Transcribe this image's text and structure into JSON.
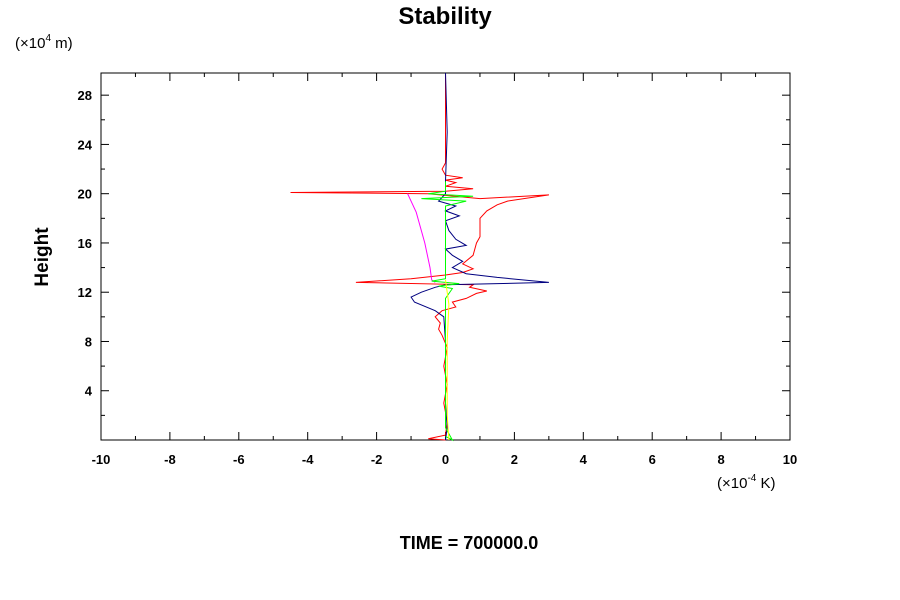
{
  "chart_data": {
    "type": "line",
    "title": "Stability",
    "xlabel": "",
    "ylabel": "Height",
    "x_unit": {
      "prefix": "(×10",
      "exp": "-4",
      "suffix": " K)"
    },
    "y_unit": {
      "prefix": "(×10",
      "exp": "4",
      "suffix": " m)"
    },
    "xlim": [
      -10,
      10
    ],
    "ylim": [
      0,
      29.8
    ],
    "x_ticks": [
      -10,
      -8,
      -6,
      -4,
      -2,
      0,
      2,
      4,
      6,
      8,
      10
    ],
    "x_tick_labels": [
      "-10",
      "-8",
      "-6",
      "-4",
      "-2",
      "0",
      "2",
      "4",
      "6",
      "8",
      "10"
    ],
    "y_ticks": [
      4,
      8,
      12,
      16,
      20,
      24,
      28
    ],
    "y_tick_labels": [
      "4",
      "8",
      "12",
      "16",
      "20",
      "24",
      "28"
    ],
    "grid": false,
    "footer": "TIME = 700000.0",
    "series": [
      {
        "color": "#ff0000",
        "points": [
          [
            0.0,
            0.0
          ],
          [
            -0.5,
            0.1
          ],
          [
            0.0,
            0.4
          ],
          [
            0.05,
            1.5
          ],
          [
            -0.05,
            3.0
          ],
          [
            0.05,
            4.5
          ],
          [
            -0.05,
            6.0
          ],
          [
            0.05,
            7.5
          ],
          [
            -0.1,
            8.5
          ],
          [
            -0.2,
            9.0
          ],
          [
            -0.15,
            9.5
          ],
          [
            -0.3,
            10.0
          ],
          [
            -0.1,
            10.5
          ],
          [
            0.3,
            10.8
          ],
          [
            0.2,
            11.2
          ],
          [
            0.6,
            11.5
          ],
          [
            0.9,
            11.9
          ],
          [
            1.2,
            12.1
          ],
          [
            0.7,
            12.4
          ],
          [
            0.8,
            12.6
          ],
          [
            -2.6,
            12.8
          ],
          [
            -1.0,
            13.1
          ],
          [
            0.0,
            13.4
          ],
          [
            0.5,
            13.6
          ],
          [
            0.8,
            13.9
          ],
          [
            0.5,
            14.3
          ],
          [
            0.8,
            15.0
          ],
          [
            0.9,
            16.0
          ],
          [
            1.0,
            16.5
          ],
          [
            1.0,
            17.2
          ],
          [
            1.0,
            18.0
          ],
          [
            1.2,
            18.6
          ],
          [
            1.5,
            19.1
          ],
          [
            1.8,
            19.4
          ],
          [
            3.0,
            19.9
          ],
          [
            1.0,
            19.6
          ],
          [
            -0.5,
            20.0
          ],
          [
            -4.5,
            20.1
          ],
          [
            0.0,
            20.2
          ],
          [
            0.8,
            20.4
          ],
          [
            0.0,
            20.6
          ],
          [
            0.3,
            20.9
          ],
          [
            0.0,
            21.1
          ],
          [
            0.5,
            21.3
          ],
          [
            0.0,
            21.5
          ],
          [
            -0.1,
            22.0
          ],
          [
            0.0,
            22.5
          ],
          [
            0.0,
            29.8
          ]
        ]
      },
      {
        "color": "#000080",
        "points": [
          [
            0.0,
            0.0
          ],
          [
            0.05,
            1.0
          ],
          [
            0.0,
            3.0
          ],
          [
            0.0,
            5.0
          ],
          [
            0.0,
            8.0
          ],
          [
            -0.05,
            10.0
          ],
          [
            -0.3,
            10.5
          ],
          [
            -0.9,
            11.2
          ],
          [
            -1.0,
            11.6
          ],
          [
            -0.7,
            12.0
          ],
          [
            -0.3,
            12.4
          ],
          [
            0.0,
            12.6
          ],
          [
            3.0,
            12.8
          ],
          [
            1.5,
            13.2
          ],
          [
            0.6,
            13.5
          ],
          [
            0.2,
            14.0
          ],
          [
            0.5,
            14.5
          ],
          [
            0.2,
            15.0
          ],
          [
            0.0,
            15.5
          ],
          [
            0.6,
            15.8
          ],
          [
            0.3,
            16.3
          ],
          [
            0.1,
            17.0
          ],
          [
            0.0,
            17.8
          ],
          [
            0.4,
            18.2
          ],
          [
            0.0,
            18.6
          ],
          [
            0.3,
            19.0
          ],
          [
            -0.2,
            19.4
          ],
          [
            0.0,
            20.0
          ],
          [
            0.0,
            21.0
          ],
          [
            0.05,
            25.0
          ],
          [
            0.0,
            29.8
          ]
        ]
      },
      {
        "color": "#ff00ff",
        "points": [
          [
            -1.1,
            20.0
          ],
          [
            -0.85,
            18.5
          ],
          [
            -0.6,
            16.0
          ],
          [
            -0.45,
            14.0
          ],
          [
            -0.4,
            13.0
          ],
          [
            -0.3,
            12.8
          ]
        ]
      },
      {
        "color": "#00ff00",
        "points": [
          [
            0.0,
            0.3
          ],
          [
            0.2,
            0.0
          ],
          [
            0.0,
            1.0
          ],
          [
            0.0,
            11.5
          ],
          [
            0.2,
            12.3
          ],
          [
            -0.2,
            12.5
          ],
          [
            0.4,
            12.7
          ],
          [
            -0.4,
            12.9
          ],
          [
            0.0,
            13.1
          ],
          [
            0.0,
            19.0
          ],
          [
            0.6,
            19.4
          ],
          [
            -0.7,
            19.6
          ],
          [
            0.8,
            19.8
          ],
          [
            -0.5,
            20.0
          ],
          [
            0.0,
            20.2
          ],
          [
            0.0,
            21.0
          ]
        ]
      },
      {
        "color": "#ffff00",
        "points": [
          [
            0.1,
            0.0
          ],
          [
            0.05,
            2.0
          ],
          [
            0.05,
            8.0
          ],
          [
            0.1,
            11.0
          ],
          [
            0.0,
            13.0
          ]
        ]
      }
    ]
  }
}
